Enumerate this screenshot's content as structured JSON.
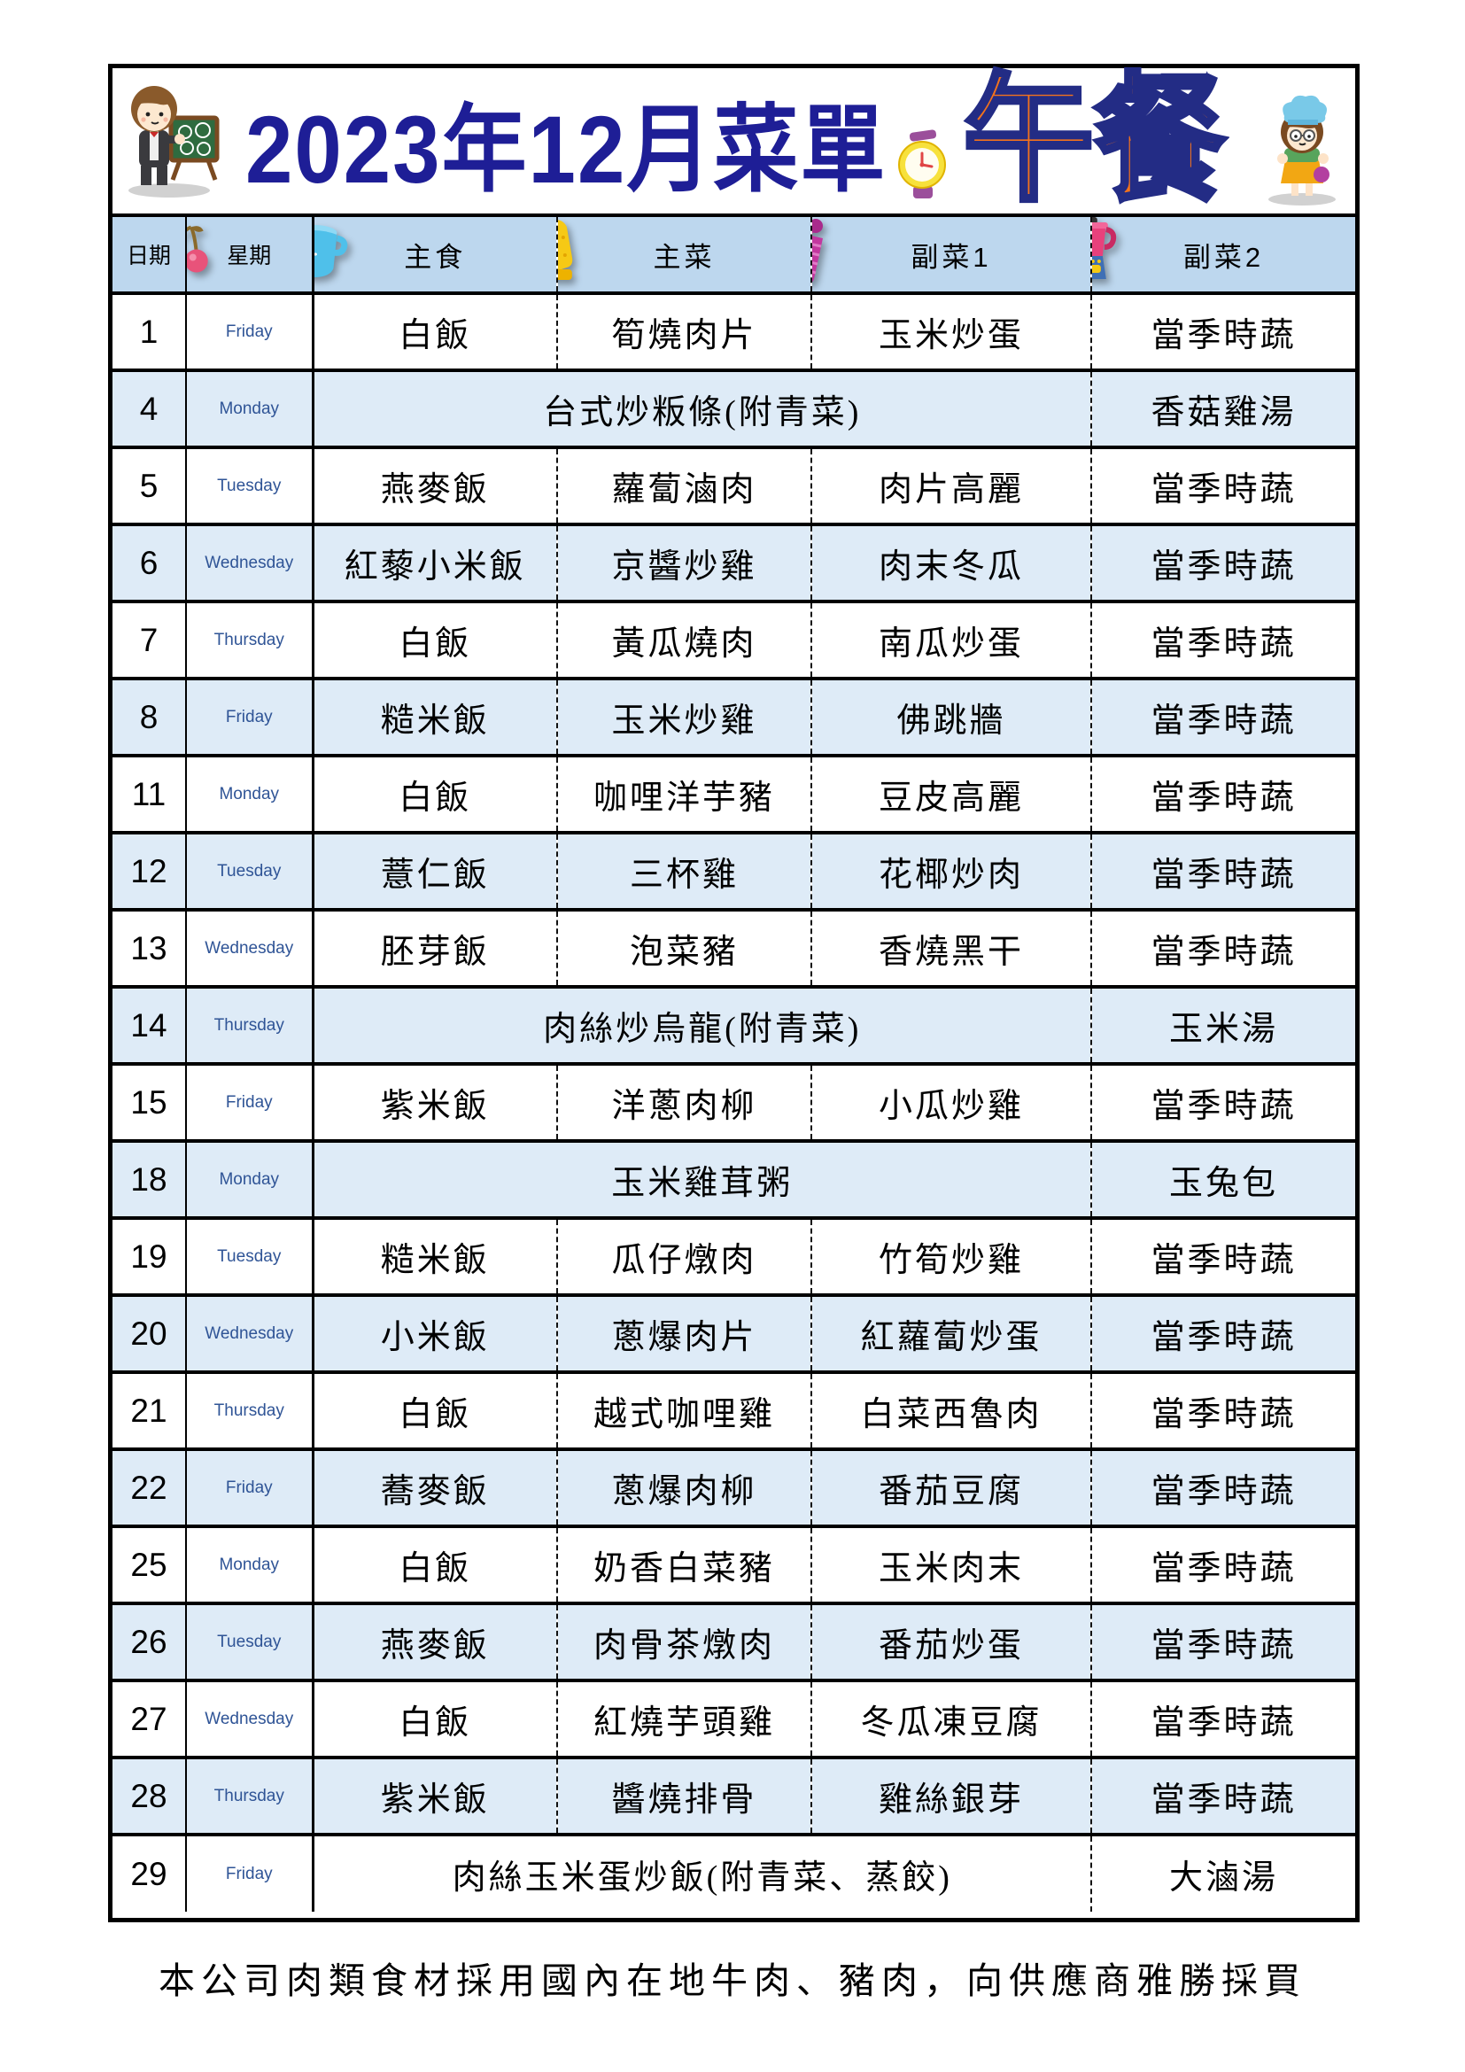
{
  "page": {
    "title": "2023年12月菜單",
    "meal_label": "午餐",
    "footer": "本公司肉類食材採用國內在地牛肉、豬肉，向供應商雅勝採買"
  },
  "colors": {
    "title_navy": "#1E1E96",
    "meal_orange_fill": "#F4731C",
    "meal_outline_navy": "#232C85",
    "header_bg": "#BDD7EE",
    "alt_row_bg": "#DEEBF7",
    "weekday_blue": "#2F5496",
    "border_black": "#000000"
  },
  "icons": {
    "teacher": "teacher-chalkboard-icon",
    "clock": "alarm-clock-icon",
    "chef": "chef-girl-icon",
    "cherries": "cherries-icon",
    "pot": "soup-pot-icon",
    "mitt": "oven-mitt-icon",
    "cone": "purple-cone-icon",
    "blender": "blender-icon"
  },
  "table": {
    "headers": {
      "date": "日期",
      "weekday": "星期",
      "staple": "主食",
      "main": "主菜",
      "side1": "副菜1",
      "side2": "副菜2"
    },
    "rows": [
      {
        "date": "1",
        "weekday": "Friday",
        "staple": "白飯",
        "main": "筍燒肉片",
        "side1": "玉米炒蛋",
        "side2": "當季時蔬"
      },
      {
        "date": "4",
        "weekday": "Monday",
        "merged": "台式炒粄條(附青菜)",
        "side2": "香菇雞湯"
      },
      {
        "date": "5",
        "weekday": "Tuesday",
        "staple": "燕麥飯",
        "main": "蘿蔔滷肉",
        "side1": "肉片高麗",
        "side2": "當季時蔬"
      },
      {
        "date": "6",
        "weekday": "Wednesday",
        "staple": "紅藜小米飯",
        "main": "京醬炒雞",
        "side1": "肉末冬瓜",
        "side2": "當季時蔬"
      },
      {
        "date": "7",
        "weekday": "Thursday",
        "staple": "白飯",
        "main": "黃瓜燒肉",
        "side1": "南瓜炒蛋",
        "side2": "當季時蔬"
      },
      {
        "date": "8",
        "weekday": "Friday",
        "staple": "糙米飯",
        "main": "玉米炒雞",
        "side1": "佛跳牆",
        "side2": "當季時蔬"
      },
      {
        "date": "11",
        "weekday": "Monday",
        "staple": "白飯",
        "main": "咖哩洋芋豬",
        "side1": "豆皮高麗",
        "side2": "當季時蔬"
      },
      {
        "date": "12",
        "weekday": "Tuesday",
        "staple": "薏仁飯",
        "main": "三杯雞",
        "side1": "花椰炒肉",
        "side2": "當季時蔬"
      },
      {
        "date": "13",
        "weekday": "Wednesday",
        "staple": "胚芽飯",
        "main": "泡菜豬",
        "side1": "香燒黑干",
        "side2": "當季時蔬"
      },
      {
        "date": "14",
        "weekday": "Thursday",
        "merged": "肉絲炒烏龍(附青菜)",
        "side2": "玉米湯"
      },
      {
        "date": "15",
        "weekday": "Friday",
        "staple": "紫米飯",
        "main": "洋蔥肉柳",
        "side1": "小瓜炒雞",
        "side2": "當季時蔬"
      },
      {
        "date": "18",
        "weekday": "Monday",
        "merged": "玉米雞茸粥",
        "side2": "玉兔包"
      },
      {
        "date": "19",
        "weekday": "Tuesday",
        "staple": "糙米飯",
        "main": "瓜仔燉肉",
        "side1": "竹筍炒雞",
        "side2": "當季時蔬"
      },
      {
        "date": "20",
        "weekday": "Wednesday",
        "staple": "小米飯",
        "main": "蔥爆肉片",
        "side1": "紅蘿蔔炒蛋",
        "side2": "當季時蔬"
      },
      {
        "date": "21",
        "weekday": "Thursday",
        "staple": "白飯",
        "main": "越式咖哩雞",
        "side1": "白菜西魯肉",
        "side2": "當季時蔬"
      },
      {
        "date": "22",
        "weekday": "Friday",
        "staple": "蕎麥飯",
        "main": "蔥爆肉柳",
        "side1": "番茄豆腐",
        "side2": "當季時蔬"
      },
      {
        "date": "25",
        "weekday": "Monday",
        "staple": "白飯",
        "main": "奶香白菜豬",
        "side1": "玉米肉末",
        "side2": "當季時蔬"
      },
      {
        "date": "26",
        "weekday": "Tuesday",
        "staple": "燕麥飯",
        "main": "肉骨茶燉肉",
        "side1": "番茄炒蛋",
        "side2": "當季時蔬"
      },
      {
        "date": "27",
        "weekday": "Wednesday",
        "staple": "白飯",
        "main": "紅燒芋頭雞",
        "side1": "冬瓜凍豆腐",
        "side2": "當季時蔬"
      },
      {
        "date": "28",
        "weekday": "Thursday",
        "staple": "紫米飯",
        "main": "醬燒排骨",
        "side1": "雞絲銀芽",
        "side2": "當季時蔬"
      },
      {
        "date": "29",
        "weekday": "Friday",
        "merged": "肉絲玉米蛋炒飯(附青菜、蒸餃)",
        "side2": "大滷湯"
      }
    ]
  }
}
